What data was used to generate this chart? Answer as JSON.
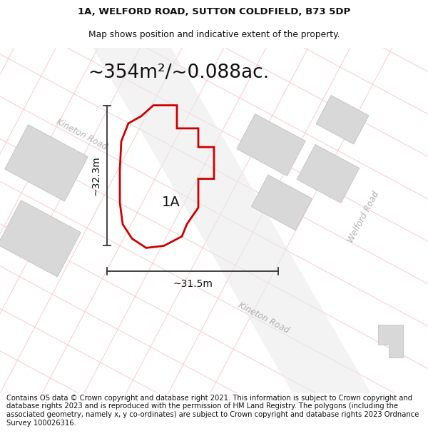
{
  "title_line1": "1A, WELFORD ROAD, SUTTON COLDFIELD, B73 5DP",
  "title_line2": "Map shows position and indicative extent of the property.",
  "area_text": "~354m²/~0.088ac.",
  "label_1a": "1A",
  "dim_height": "~32.3m",
  "dim_width": "~31.5m",
  "footer_text": "Contains OS data © Crown copyright and database right 2021. This information is subject to Crown copyright and database rights 2023 and is reproduced with the permission of HM Land Registry. The polygons (including the associated geometry, namely x, y co-ordinates) are subject to Crown copyright and database rights 2023 Ordnance Survey 100026316.",
  "bg_color": "#f8f7f5",
  "plot_color": "#cc0000",
  "title_fontsize": 9.5,
  "subtitle_fontsize": 8.8,
  "area_fontsize": 19,
  "label_fontsize": 14,
  "dim_fontsize": 10,
  "footer_fontsize": 7.2
}
